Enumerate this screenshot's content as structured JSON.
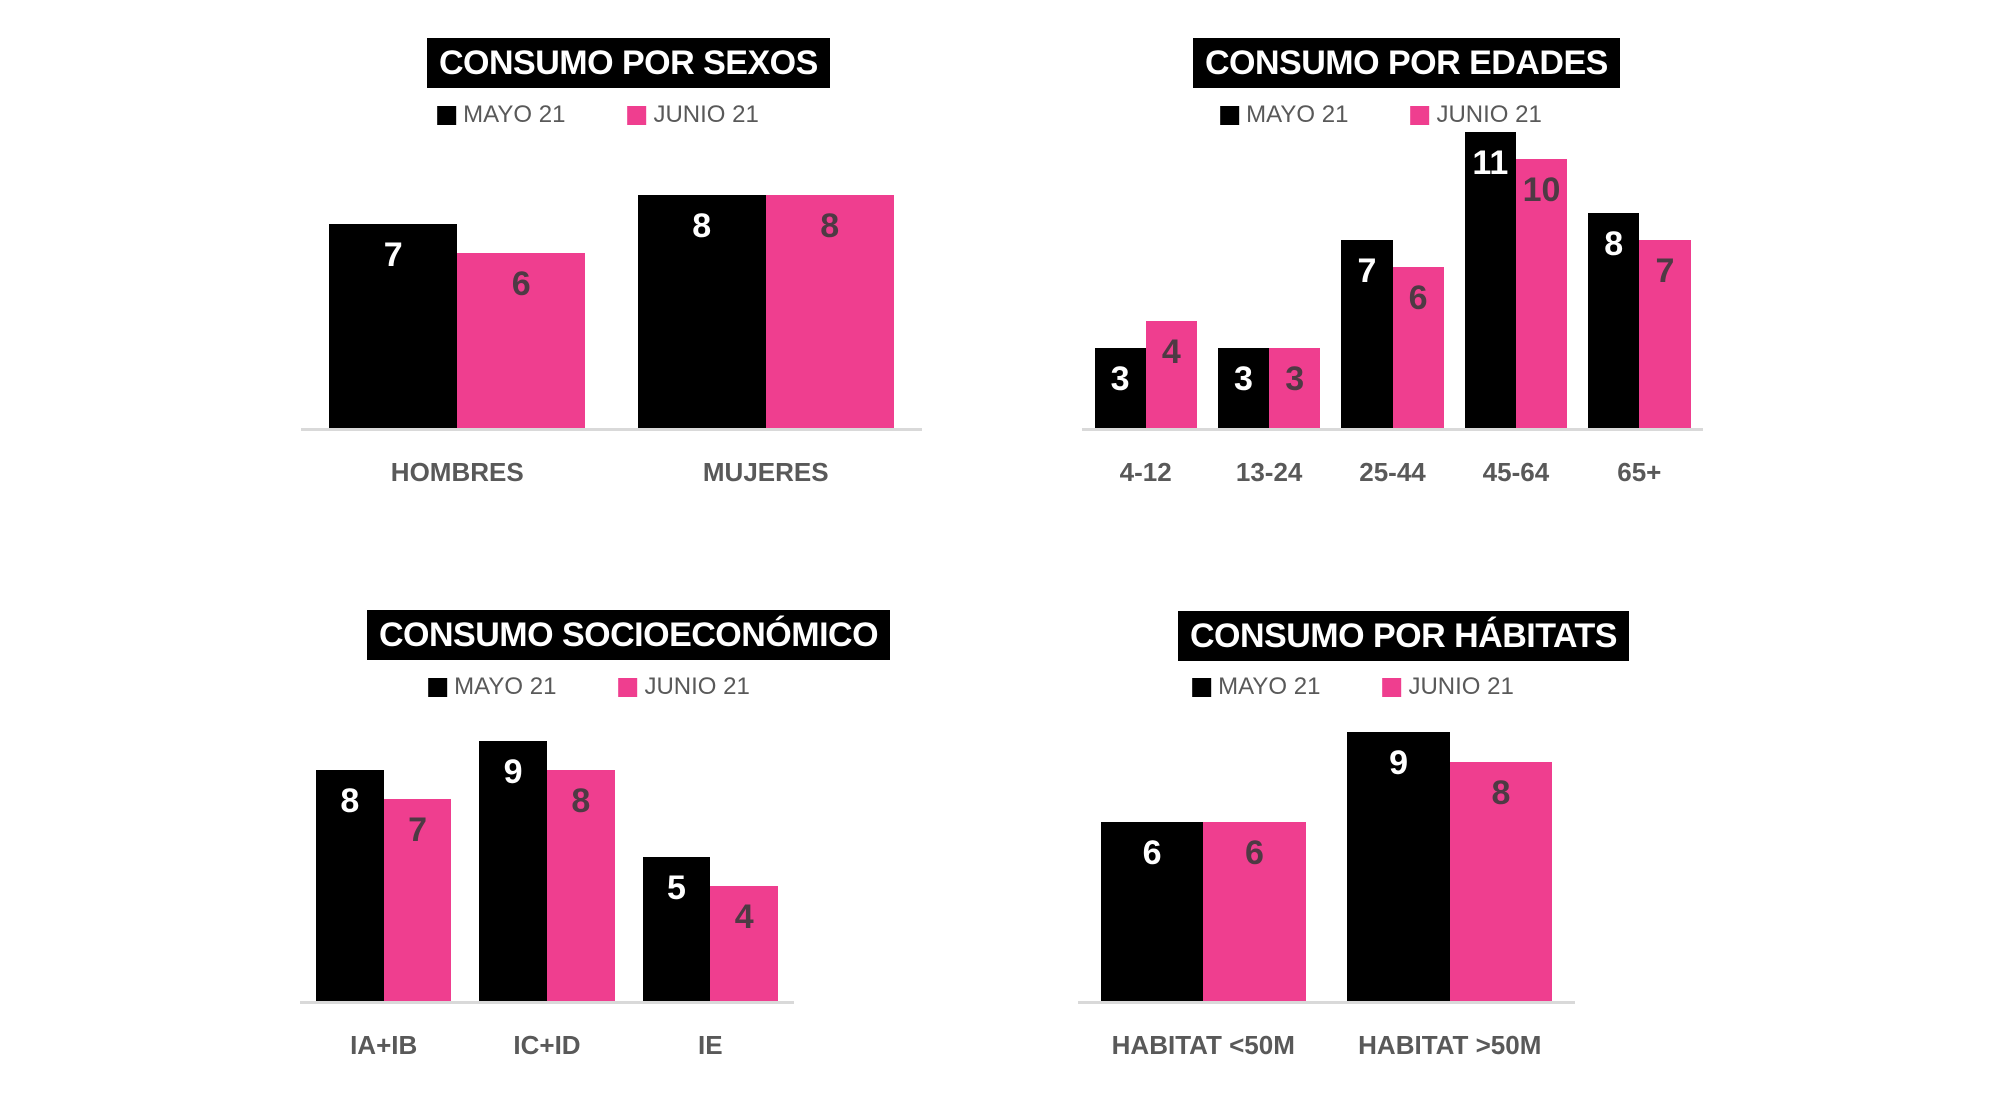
{
  "page": {
    "background": "#ffffff"
  },
  "colors": {
    "series": [
      "#000000",
      "#EF3E8F"
    ],
    "title_bg": "#000000",
    "title_text": "#FFFFFF",
    "legend_text": "#595959",
    "category_label": "#595959",
    "value_label_on_black": "#FFFFFF",
    "value_label_on_pink": "#4E3A44",
    "baseline": "#D9D9D9"
  },
  "chart_data": [
    {
      "type": "bar",
      "title": "CONSUMO POR SEXOS",
      "categories": [
        "HOMBRES",
        "MUJERES"
      ],
      "series": [
        {
          "name": "MAYO 21",
          "values": [
            7,
            8
          ]
        },
        {
          "name": "JUNIO 21",
          "values": [
            6,
            8
          ]
        }
      ],
      "ylim": [
        0,
        10
      ],
      "grid": false,
      "legend_position": "top",
      "value_labels": "inside-top"
    },
    {
      "type": "bar",
      "title": "CONSUMO POR EDADES",
      "categories": [
        "4-12",
        "13-24",
        "25-44",
        "45-64",
        "65+"
      ],
      "series": [
        {
          "name": "MAYO 21",
          "values": [
            3,
            3,
            7,
            11,
            8
          ]
        },
        {
          "name": "JUNIO 21",
          "values": [
            4,
            3,
            6,
            10,
            7
          ]
        }
      ],
      "ylim": [
        0,
        11
      ],
      "grid": false,
      "legend_position": "top",
      "value_labels": "inside-top"
    },
    {
      "type": "bar",
      "title": "CONSUMO SOCIOECONÓMICO",
      "categories": [
        "IA+IB",
        "IC+ID",
        "IE"
      ],
      "series": [
        {
          "name": "MAYO 21",
          "values": [
            8,
            9,
            5
          ]
        },
        {
          "name": "JUNIO 21",
          "values": [
            7,
            8,
            4
          ]
        }
      ],
      "ylim": [
        0,
        10
      ],
      "grid": false,
      "legend_position": "top",
      "value_labels": "inside-top"
    },
    {
      "type": "bar",
      "title": "CONSUMO POR HÁBITATS",
      "categories": [
        "HABITAT <50M",
        "HABITAT >50M"
      ],
      "series": [
        {
          "name": "MAYO 21",
          "values": [
            6,
            9
          ]
        },
        {
          "name": "JUNIO 21",
          "values": [
            6,
            8
          ]
        }
      ],
      "ylim": [
        0,
        10
      ],
      "grid": false,
      "legend_position": "top",
      "value_labels": "inside-top"
    }
  ]
}
